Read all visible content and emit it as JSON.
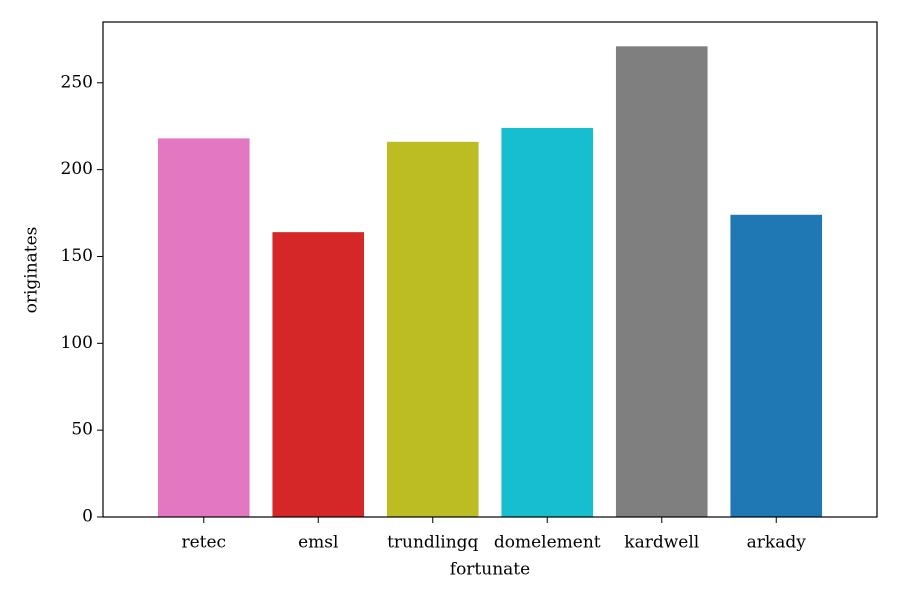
{
  "chart_data": {
    "type": "bar",
    "categories": [
      "retec",
      "emsl",
      "trundlingq",
      "domelement",
      "kardwell",
      "arkady"
    ],
    "values": [
      218,
      164,
      216,
      224,
      271,
      174
    ],
    "colors": [
      "#e377c2",
      "#d62728",
      "#bcbd22",
      "#17becf",
      "#7f7f7f",
      "#1f77b4"
    ],
    "xlabel": "fortunate",
    "ylabel": "originates",
    "ylim": [
      0,
      285
    ],
    "yticks": [
      0,
      50,
      100,
      150,
      200,
      250
    ],
    "grid": false
  }
}
